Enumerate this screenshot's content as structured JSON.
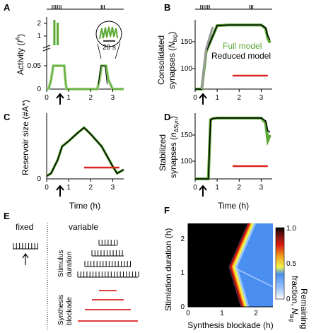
{
  "colors": {
    "full_model": "#5aa832",
    "full_model_light": "#a6d48c",
    "reduced_model": "#000000",
    "blockade": "#dd2222",
    "grey": "#9a9a9a"
  },
  "panels": {
    "A": "A",
    "B": "B",
    "C": "C",
    "D": "D",
    "E": "E",
    "F": "F"
  },
  "labels": {
    "x_time": "Time (h)",
    "a_y": "Activity (",
    "a_y_sym": "I",
    "a_y_sup": "A",
    "a_y_close": ")",
    "b_y1": "Consolidated",
    "b_y2": "synapses (",
    "b_y2_sym": "N",
    "b_y2_sub": "big",
    "b_y2_close": ")",
    "c_y": "Reservoir size (#A*)",
    "d_y1": "Stabilized",
    "d_y2": "synapses (",
    "d_y2_sym": "n",
    "d_y2_sub": "ΔSyn",
    "d_y2_close": ")",
    "zoom_scale": "20 s",
    "legend_full": "Full model",
    "legend_reduced": "Reduced model",
    "e_fixed": "fixed",
    "e_variable": "variable",
    "e_stim1": "Stimulus",
    "e_stim2": "duration",
    "e_synth1": "Synthesis",
    "e_synth2": "blockade",
    "f_x": "Synthesis blockade (h)",
    "f_y": "Stimlation duration (h)",
    "f_cb1": "Remaining",
    "f_cb2": "fraction,",
    "f_cb_sym": "N",
    "f_cb_sub": "big"
  },
  "ticks": {
    "time": [
      "0",
      "1",
      "2",
      "3"
    ],
    "a_y": [
      "0",
      "0.05",
      "1",
      "2"
    ],
    "b_y": [
      "100",
      "150"
    ],
    "c_y": [
      "0"
    ],
    "d_y": [
      "100",
      "150"
    ],
    "f_x": [
      "0",
      "1",
      "2"
    ],
    "f_y": [
      "0",
      "1",
      "2"
    ],
    "f_cb": [
      "0",
      "0.5",
      "1.0"
    ]
  },
  "chart_data": [
    {
      "panel": "A",
      "type": "line",
      "xlabel": "Time (h)",
      "ylabel": "Activity (I^A)",
      "xlim": [
        0,
        3.5
      ],
      "series": [
        {
          "name": "Full model",
          "x": [
            0,
            0.1,
            0.2,
            0.3,
            0.5,
            0.7,
            0.8,
            0.85,
            0.9,
            1.0,
            2.3,
            2.4,
            2.5,
            2.6,
            2.7,
            2.8,
            3.0,
            3.5
          ],
          "y": [
            0,
            0.002,
            0.02,
            0.05,
            0.05,
            0.05,
            0.05,
            0.02,
            0.0,
            0,
            0,
            0.02,
            0.05,
            0.05,
            0.05,
            0.02,
            0,
            0
          ]
        }
      ],
      "stimulus_bursts_h": [
        0.25,
        0.33,
        0.41,
        0.49,
        0.57,
        0.65,
        2.48,
        2.55,
        2.62
      ]
    },
    {
      "panel": "B",
      "type": "line",
      "xlabel": "Time (h)",
      "ylabel": "Consolidated synapses (N_big)",
      "xlim": [
        0,
        3.5
      ],
      "ylim": [
        70,
        190
      ],
      "series": [
        {
          "name": "Full model",
          "x": [
            0,
            0.3,
            0.5,
            1.0,
            1.5,
            2.0,
            2.5,
            3.0,
            3.2,
            3.3,
            3.4
          ],
          "y": [
            70,
            70,
            135,
            180,
            181,
            181,
            181,
            181,
            175,
            158,
            150
          ]
        },
        {
          "name": "Reduced model",
          "x": [
            0,
            0.3,
            0.5,
            1.0,
            1.5,
            2.0,
            2.5,
            3.0,
            3.2,
            3.3,
            3.4
          ],
          "y": [
            70,
            70,
            135,
            180,
            181,
            181,
            181,
            181,
            176,
            162,
            155
          ]
        }
      ],
      "blockade_h": [
        1.7,
        3.3
      ]
    },
    {
      "panel": "C",
      "type": "line",
      "xlabel": "Time (h)",
      "ylabel": "Reservoir size (#A*)",
      "xlim": [
        0,
        3.5
      ],
      "series": [
        {
          "name": "Full model",
          "x": [
            0,
            0.2,
            0.5,
            0.7,
            1.0,
            1.4,
            1.7,
            2.0,
            2.5,
            3.0,
            3.2,
            3.5
          ],
          "y": [
            0,
            0.05,
            0.3,
            0.55,
            0.65,
            0.8,
            0.9,
            0.78,
            0.55,
            0.18,
            0.05,
            0.12
          ]
        },
        {
          "name": "Reduced model",
          "x": [
            0,
            0.2,
            0.5,
            0.7,
            1.0,
            1.4,
            1.7,
            2.0,
            2.5,
            3.0,
            3.2,
            3.5
          ],
          "y": [
            0,
            0.05,
            0.3,
            0.55,
            0.65,
            0.8,
            0.9,
            0.78,
            0.55,
            0.18,
            0.05,
            0.12
          ]
        }
      ],
      "blockade_h": [
        1.7,
        3.3
      ]
    },
    {
      "panel": "D",
      "type": "line",
      "xlabel": "Time (h)",
      "ylabel": "Stabilized synapses (n_ΔSyn)",
      "xlim": [
        0,
        3.5
      ],
      "ylim": [
        70,
        190
      ],
      "series": [
        {
          "name": "Full model",
          "x": [
            0,
            0.6,
            0.7,
            0.8,
            1.0,
            1.5,
            2.0,
            2.5,
            3.0,
            3.2,
            3.3,
            3.4
          ],
          "y": [
            70,
            70,
            178,
            180,
            181,
            181,
            181,
            181,
            181,
            172,
            140,
            150
          ]
        },
        {
          "name": "Reduced model",
          "x": [
            0,
            0.6,
            0.7,
            0.8,
            1.0,
            1.5,
            2.0,
            2.5,
            3.0,
            3.2,
            3.3,
            3.4
          ],
          "y": [
            70,
            70,
            178,
            180,
            181,
            181,
            181,
            181,
            181,
            176,
            158,
            155
          ]
        }
      ],
      "blockade_h": [
        1.7,
        3.3
      ]
    },
    {
      "panel": "F",
      "type": "heatmap",
      "xlabel": "Synthesis blockade (h)",
      "ylabel": "Stimlation duration (h)",
      "xlim": [
        0,
        2.5
      ],
      "ylim": [
        0,
        2.5
      ],
      "colorbar": {
        "label": "Remaining fraction, N_big",
        "range": [
          0,
          1.0
        ]
      },
      "boundary_x_at_y": [
        [
          0,
          1.55
        ],
        [
          1.2,
          1.2
        ],
        [
          2.5,
          1.75
        ]
      ]
    }
  ]
}
